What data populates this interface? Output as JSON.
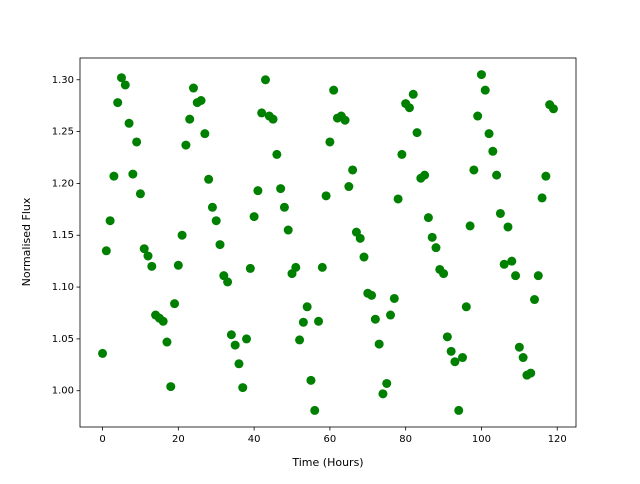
{
  "chart_data": {
    "type": "scatter",
    "xlabel": "Time (Hours)",
    "ylabel": "Normalised Flux",
    "series": [
      {
        "color": "#008000",
        "x": [
          0,
          1,
          2,
          3,
          4,
          5,
          6,
          7,
          8,
          9,
          10,
          11,
          12,
          13,
          14,
          15,
          16,
          17,
          18,
          19,
          20,
          21,
          22,
          23,
          24,
          25,
          26,
          27,
          28,
          29,
          30,
          31,
          32,
          33,
          34,
          35,
          36,
          37,
          38,
          39,
          40,
          41,
          42,
          43,
          44,
          45,
          46,
          47,
          48,
          49,
          50,
          51,
          52,
          53,
          54,
          55,
          56,
          57,
          58,
          59,
          60,
          61,
          62,
          63,
          64,
          65,
          66,
          67,
          68,
          69,
          70,
          71,
          72,
          73,
          74,
          75,
          76,
          77,
          78,
          79,
          80,
          81,
          82,
          83,
          84,
          85,
          86,
          87,
          88,
          89,
          90,
          91,
          92,
          93,
          94,
          95,
          96,
          97,
          98,
          99,
          100,
          101,
          102,
          103,
          104,
          105,
          106,
          107,
          108,
          109,
          110,
          111,
          112,
          113,
          114,
          115,
          116,
          117,
          118,
          119
        ],
        "values": [
          1.036,
          1.135,
          1.164,
          1.207,
          1.278,
          1.302,
          1.295,
          1.258,
          1.209,
          1.24,
          1.19,
          1.137,
          1.13,
          1.12,
          1.073,
          1.07,
          1.067,
          1.047,
          1.004,
          1.084,
          1.121,
          1.15,
          1.237,
          1.262,
          1.292,
          1.278,
          1.28,
          1.248,
          1.204,
          1.177,
          1.164,
          1.141,
          1.111,
          1.105,
          1.054,
          1.044,
          1.026,
          1.003,
          1.05,
          1.118,
          1.168,
          1.193,
          1.268,
          1.3,
          1.265,
          1.262,
          1.228,
          1.195,
          1.177,
          1.155,
          1.113,
          1.119,
          1.049,
          1.066,
          1.081,
          1.01,
          0.981,
          1.067,
          1.119,
          1.188,
          1.24,
          1.29,
          1.263,
          1.265,
          1.261,
          1.197,
          1.213,
          1.153,
          1.147,
          1.129,
          1.094,
          1.092,
          1.069,
          1.045,
          0.997,
          1.007,
          1.073,
          1.089,
          1.185,
          1.228,
          1.277,
          1.273,
          1.286,
          1.249,
          1.205,
          1.208,
          1.167,
          1.148,
          1.138,
          1.117,
          1.113,
          1.052,
          1.038,
          1.028,
          0.981,
          1.032,
          1.081,
          1.159,
          1.213,
          1.265,
          1.305,
          1.29,
          1.248,
          1.231,
          1.208,
          1.171,
          1.122,
          1.158,
          1.125,
          1.111,
          1.042,
          1.032,
          1.015,
          1.017,
          1.088,
          1.111,
          1.186,
          1.207,
          1.276,
          1.272
        ]
      }
    ],
    "xlim": [
      -5.95,
      124.95
    ],
    "xticks": [
      0,
      20,
      40,
      60,
      80,
      100,
      120
    ],
    "ylim": [
      0.965,
      1.321
    ],
    "yticks": [
      {
        "value": 1.0,
        "label": "1.00"
      },
      1.05,
      {
        "value": 1.1,
        "label": "1.10"
      },
      1.15,
      {
        "value": 1.2,
        "label": "1.20"
      },
      1.25,
      {
        "value": 1.3,
        "label": "1.30"
      }
    ]
  }
}
